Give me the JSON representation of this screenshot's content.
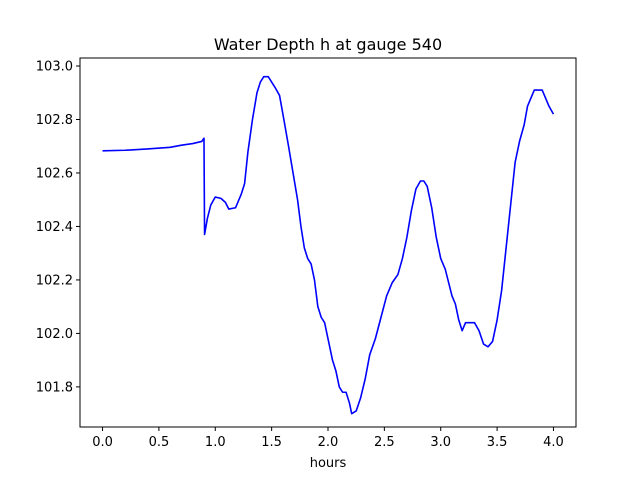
{
  "chart_data": {
    "type": "line",
    "title": "Water Depth h at gauge 540",
    "xlabel": "hours",
    "ylabel": "",
    "xlim": [
      -0.2,
      4.2
    ],
    "ylim": [
      101.65,
      103.03
    ],
    "xticks": [
      0.0,
      0.5,
      1.0,
      1.5,
      2.0,
      2.5,
      3.0,
      3.5,
      4.0
    ],
    "xtick_labels": [
      "0.0",
      "0.5",
      "1.0",
      "1.5",
      "2.0",
      "2.5",
      "3.0",
      "3.5",
      "4.0"
    ],
    "yticks": [
      101.8,
      102.0,
      102.2,
      102.4,
      102.6,
      102.8,
      103.0
    ],
    "ytick_labels": [
      "101.8",
      "102.0",
      "102.2",
      "102.4",
      "102.6",
      "102.8",
      "103.0"
    ],
    "grid": false,
    "legend": "none",
    "series": [
      {
        "color": "#0000ff",
        "points": [
          [
            0.0,
            102.683
          ],
          [
            0.2,
            102.685
          ],
          [
            0.4,
            102.69
          ],
          [
            0.6,
            102.696
          ],
          [
            0.7,
            102.704
          ],
          [
            0.8,
            102.71
          ],
          [
            0.88,
            102.718
          ],
          [
            0.9,
            102.73
          ],
          [
            0.9,
            102.72
          ],
          [
            0.905,
            102.37
          ],
          [
            0.93,
            102.43
          ],
          [
            0.96,
            102.48
          ],
          [
            1.0,
            102.51
          ],
          [
            1.05,
            102.505
          ],
          [
            1.09,
            102.49
          ],
          [
            1.12,
            102.465
          ],
          [
            1.18,
            102.47
          ],
          [
            1.23,
            102.52
          ],
          [
            1.26,
            102.56
          ],
          [
            1.29,
            102.68
          ],
          [
            1.33,
            102.8
          ],
          [
            1.37,
            102.9
          ],
          [
            1.4,
            102.94
          ],
          [
            1.43,
            102.96
          ],
          [
            1.47,
            102.96
          ],
          [
            1.5,
            102.94
          ],
          [
            1.53,
            102.92
          ],
          [
            1.57,
            102.89
          ],
          [
            1.6,
            102.82
          ],
          [
            1.65,
            102.7
          ],
          [
            1.69,
            102.6
          ],
          [
            1.73,
            102.5
          ],
          [
            1.76,
            102.4
          ],
          [
            1.79,
            102.32
          ],
          [
            1.82,
            102.28
          ],
          [
            1.85,
            102.26
          ],
          [
            1.88,
            102.2
          ],
          [
            1.91,
            102.1
          ],
          [
            1.94,
            102.06
          ],
          [
            1.97,
            102.04
          ],
          [
            2.01,
            101.96
          ],
          [
            2.04,
            101.9
          ],
          [
            2.07,
            101.86
          ],
          [
            2.1,
            101.8
          ],
          [
            2.13,
            101.78
          ],
          [
            2.16,
            101.78
          ],
          [
            2.19,
            101.74
          ],
          [
            2.21,
            101.7
          ],
          [
            2.25,
            101.71
          ],
          [
            2.29,
            101.76
          ],
          [
            2.33,
            101.83
          ],
          [
            2.37,
            101.92
          ],
          [
            2.42,
            101.98
          ],
          [
            2.47,
            102.06
          ],
          [
            2.52,
            102.14
          ],
          [
            2.57,
            102.19
          ],
          [
            2.62,
            102.22
          ],
          [
            2.66,
            102.28
          ],
          [
            2.7,
            102.36
          ],
          [
            2.74,
            102.46
          ],
          [
            2.78,
            102.54
          ],
          [
            2.82,
            102.57
          ],
          [
            2.85,
            102.57
          ],
          [
            2.88,
            102.55
          ],
          [
            2.92,
            102.47
          ],
          [
            2.96,
            102.36
          ],
          [
            3.0,
            102.28
          ],
          [
            3.04,
            102.24
          ],
          [
            3.07,
            102.19
          ],
          [
            3.1,
            102.14
          ],
          [
            3.13,
            102.11
          ],
          [
            3.16,
            102.05
          ],
          [
            3.19,
            102.01
          ],
          [
            3.22,
            102.04
          ],
          [
            3.26,
            102.04
          ],
          [
            3.3,
            102.04
          ],
          [
            3.34,
            102.01
          ],
          [
            3.38,
            101.96
          ],
          [
            3.42,
            101.95
          ],
          [
            3.46,
            101.97
          ],
          [
            3.5,
            102.05
          ],
          [
            3.54,
            102.16
          ],
          [
            3.58,
            102.32
          ],
          [
            3.62,
            102.48
          ],
          [
            3.66,
            102.64
          ],
          [
            3.7,
            102.72
          ],
          [
            3.74,
            102.78
          ],
          [
            3.77,
            102.85
          ],
          [
            3.8,
            102.88
          ],
          [
            3.83,
            102.91
          ],
          [
            3.87,
            102.91
          ],
          [
            3.9,
            102.91
          ],
          [
            3.93,
            102.88
          ],
          [
            3.96,
            102.85
          ],
          [
            4.0,
            102.82
          ]
        ]
      }
    ]
  }
}
